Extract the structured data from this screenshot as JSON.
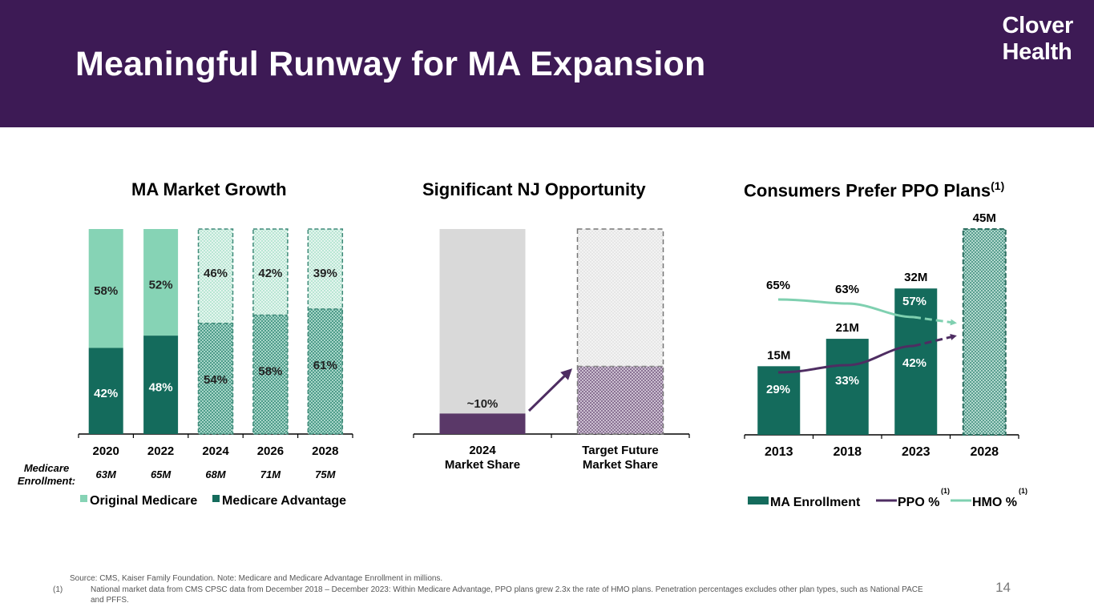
{
  "header": {
    "title": "Meaningful Runway for MA Expansion",
    "logo_line1": "Clover",
    "logo_line2": "Health",
    "background_color": "#3d1a55"
  },
  "colors": {
    "ma_dark_green": "#146b5c",
    "original_light_green": "#86d3b5",
    "purple": "#5a3868",
    "light_gray": "#d9d9d9",
    "hmo_line": "#7fd0b0",
    "ppo_line": "#4e2d62"
  },
  "chart_data": [
    {
      "type": "bar",
      "stacked": true,
      "title": "MA Market Growth",
      "categories": [
        "2020",
        "2022",
        "2024",
        "2026",
        "2028"
      ],
      "projected": [
        false,
        false,
        true,
        true,
        true
      ],
      "series": [
        {
          "name": "Medicare Advantage",
          "values": [
            42,
            48,
            54,
            58,
            61
          ],
          "labels": [
            "42%",
            "48%",
            "54%",
            "58%",
            "61%"
          ]
        },
        {
          "name": "Original Medicare",
          "values": [
            58,
            52,
            46,
            42,
            39
          ],
          "labels": [
            "58%",
            "52%",
            "46%",
            "42%",
            "39%"
          ]
        }
      ],
      "ylim": [
        0,
        100
      ],
      "enrollment_label": "Medicare Enrollment:",
      "enrollment_label_line1": "Medicare",
      "enrollment_label_line2": "Enrollment:",
      "enrollment": [
        "63M",
        "65M",
        "68M",
        "71M",
        "75M"
      ],
      "legend": [
        "Original Medicare",
        "Medicare Advantage"
      ],
      "legend_placement": "bottom"
    },
    {
      "type": "bar",
      "stacked": true,
      "title": "Significant NJ Opportunity",
      "categories": [
        "2024\nMarket Share",
        "Target Future\nMarket Share"
      ],
      "category_lines": [
        [
          "2024",
          "Market Share"
        ],
        [
          "Target Future",
          "Market Share"
        ]
      ],
      "projected": [
        false,
        true
      ],
      "series": [
        {
          "name": "Clover share",
          "values": [
            10,
            33
          ]
        },
        {
          "name": "Remainder",
          "values": [
            90,
            67
          ]
        }
      ],
      "data_label": "~10%",
      "ylim": [
        0,
        100
      ],
      "annotation": "arrow from 2024 share to target share"
    },
    {
      "type": "bar",
      "title": "Consumers Prefer PPO Plans",
      "title_superscript": "(1)",
      "categories": [
        "2013",
        "2018",
        "2023",
        "2028"
      ],
      "projected": [
        false,
        false,
        false,
        true
      ],
      "bar_series": {
        "name": "MA Enrollment",
        "values": [
          15,
          21,
          32,
          45
        ],
        "labels": [
          "15M",
          "21M",
          "32M",
          "45M"
        ]
      },
      "line_series": [
        {
          "name": "PPO %",
          "values": [
            29,
            33,
            42
          ],
          "labels": [
            "29%",
            "33%",
            "42%"
          ],
          "projected_trend": "up"
        },
        {
          "name": "HMO %",
          "values": [
            65,
            63,
            57
          ],
          "labels": [
            "65%",
            "63%",
            "57%"
          ],
          "projected_trend": "down"
        }
      ],
      "ylim": [
        0,
        45
      ],
      "legend": [
        "MA Enrollment",
        "PPO %",
        "HMO %"
      ],
      "legend_superscript": "(1)",
      "legend_placement": "bottom"
    }
  ],
  "footer": {
    "source": "Source: CMS, Kaiser Family Foundation. Note: Medicare  and Medicare Advantage Enrollment in millions.",
    "note_marker": "(1)",
    "note_line1": "National market data from CMS CPSC data from December 2018 – December 2023: Within Medicare Advantage, PPO plans grew 2.3x the rate of HMO plans. Penetration percentages excludes other plan types, such as National PACE",
    "note_line2": "and PFFS.",
    "page_number": "14"
  }
}
